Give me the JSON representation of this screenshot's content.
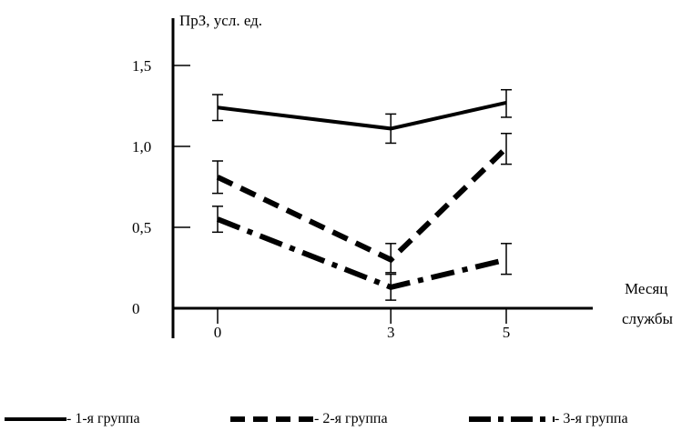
{
  "chart_data": {
    "type": "line",
    "ylabel": "ПрЗ, усл. ед.",
    "xlabel_line1": "Месяц",
    "xlabel_line2": "службы",
    "x": [
      0,
      3,
      5
    ],
    "x_tick_labels": [
      "0",
      "3",
      "5"
    ],
    "y_tick_labels": [
      "0",
      "0,5",
      "1,0",
      "1,5"
    ],
    "y_ticks": [
      0,
      0.5,
      1.0,
      1.5
    ],
    "ylim": [
      -0.09,
      1.82
    ],
    "series": [
      {
        "name": "- 1-я группа",
        "style": "solid",
        "values": [
          1.24,
          1.11,
          1.27
        ],
        "err_low": [
          1.16,
          1.02,
          1.18
        ],
        "err_high": [
          1.32,
          1.2,
          1.35
        ]
      },
      {
        "name": "- 2-я группа",
        "style": "dashed",
        "values": [
          0.81,
          0.3,
          0.99
        ],
        "err_low": [
          0.71,
          0.22,
          0.89
        ],
        "err_high": [
          0.91,
          0.4,
          1.08
        ]
      },
      {
        "name": "- 3-я группа",
        "style": "dashdot",
        "values": [
          0.55,
          0.13,
          0.3
        ],
        "err_low": [
          0.47,
          0.05,
          0.21
        ],
        "err_high": [
          0.63,
          0.21,
          0.4
        ]
      }
    ],
    "legend_position": "bottom",
    "grid": false
  }
}
